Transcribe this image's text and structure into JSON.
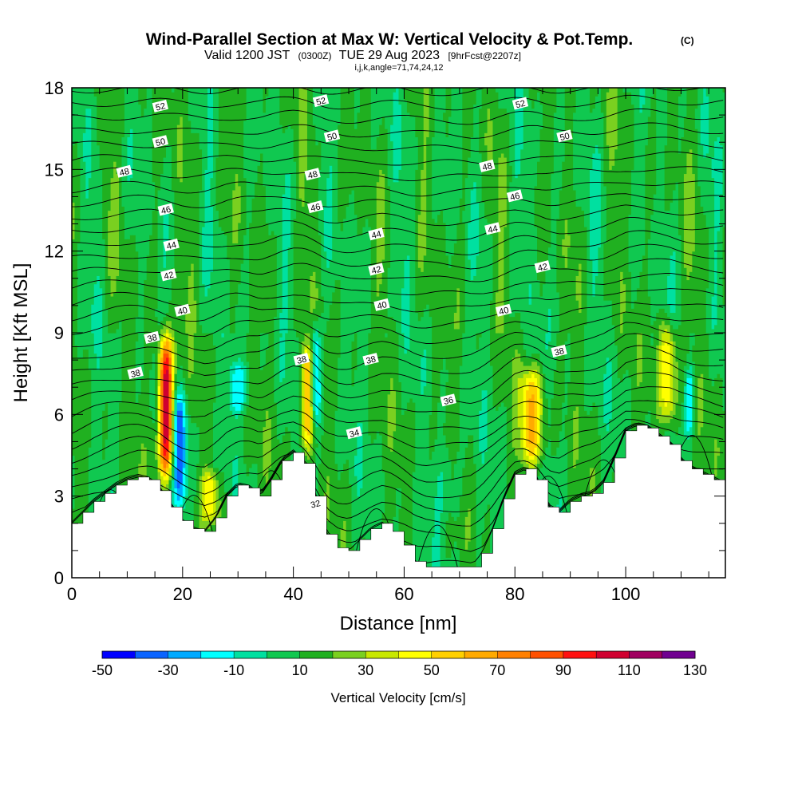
{
  "chart_data": {
    "type": "heatmap",
    "title": "Wind-Parallel Section at Max W: Vertical Velocity & Pot.Temp.",
    "copyright_mark": "(C)",
    "subtitle_valid": "Valid 1200 JST",
    "subtitle_utc": "(0300Z)",
    "subtitle_date": "TUE 29 Aug 2023",
    "subtitle_forecast": "[9hrFcst@2207z]",
    "subtitle_grid": "i,j,k,angle=71,74,24,12",
    "xlabel": "Distance [nm]",
    "ylabel": "Height [Kft MSL]",
    "xlim": [
      0,
      118
    ],
    "ylim": [
      0,
      18
    ],
    "x_ticks": [
      "0",
      "20",
      "40",
      "60",
      "80",
      "100"
    ],
    "x_tick_values": [
      0,
      20,
      40,
      60,
      80,
      100
    ],
    "y_ticks": [
      "0",
      "3",
      "6",
      "9",
      "12",
      "15",
      "18"
    ],
    "y_tick_values": [
      0,
      3,
      6,
      9,
      12,
      15,
      18
    ],
    "colorbar": {
      "label": "Vertical Velocity [cm/s]",
      "levels": [
        -50,
        -40,
        -30,
        -20,
        -10,
        0,
        10,
        20,
        30,
        40,
        50,
        60,
        70,
        80,
        90,
        100,
        110,
        120,
        130
      ],
      "tick_labels": [
        "-50",
        "-30",
        "-10",
        "10",
        "30",
        "50",
        "70",
        "90",
        "110",
        "130"
      ],
      "tick_values": [
        -50,
        -30,
        -10,
        10,
        30,
        50,
        70,
        90,
        110,
        130
      ],
      "colors": [
        "#0000ff",
        "#0a64ff",
        "#00aaff",
        "#00ffff",
        "#00e0a0",
        "#10c850",
        "#20b020",
        "#7ad020",
        "#c8e800",
        "#ffff00",
        "#ffd000",
        "#ffaa00",
        "#ff8000",
        "#ff5000",
        "#ff1010",
        "#d00030",
        "#a00060",
        "#700090"
      ]
    },
    "terrain_profile": {
      "x": [
        0,
        2,
        4,
        6,
        8,
        10,
        12,
        14,
        16,
        18,
        20,
        22,
        24,
        26,
        28,
        30,
        32,
        34,
        36,
        38,
        40,
        42,
        44,
        46,
        48,
        50,
        52,
        54,
        56,
        58,
        60,
        62,
        64,
        66,
        68,
        70,
        72,
        74,
        76,
        78,
        80,
        82,
        84,
        86,
        88,
        90,
        92,
        94,
        96,
        98,
        100,
        102,
        104,
        106,
        108,
        110,
        112,
        114,
        116,
        118
      ],
      "height": [
        2.0,
        2.4,
        2.8,
        3.1,
        3.4,
        3.6,
        3.7,
        3.6,
        3.2,
        2.6,
        2.1,
        1.8,
        1.7,
        2.2,
        3.0,
        3.4,
        3.3,
        3.0,
        3.6,
        4.3,
        4.6,
        4.2,
        3.0,
        1.6,
        1.1,
        1.0,
        1.4,
        1.8,
        2.0,
        1.7,
        1.2,
        0.6,
        0.4,
        0.4,
        0.4,
        0.4,
        0.4,
        0.9,
        1.8,
        2.9,
        3.8,
        4.0,
        3.6,
        2.6,
        2.4,
        2.8,
        3.0,
        3.1,
        3.5,
        4.4,
        5.4,
        5.6,
        5.5,
        5.2,
        4.9,
        4.3,
        4.0,
        3.8,
        3.6,
        3.4
      ]
    },
    "w_features": [
      {
        "x": 17.0,
        "zmin": 3.6,
        "zmax": 9.0,
        "sx": 1.3,
        "value": 105
      },
      {
        "x": 19.5,
        "zmin": 2.4,
        "zmax": 7.0,
        "sx": 1.2,
        "value": -45
      },
      {
        "x": 42.5,
        "zmin": 4.6,
        "zmax": 8.8,
        "sx": 1.2,
        "value": 55
      },
      {
        "x": 44.0,
        "zmin": 5.5,
        "zmax": 9.5,
        "sx": 1.0,
        "value": -40
      },
      {
        "x": 83.0,
        "zmin": 4.0,
        "zmax": 7.8,
        "sx": 2.0,
        "value": 50
      },
      {
        "x": 107.5,
        "zmin": 5.5,
        "zmax": 9.5,
        "sx": 1.5,
        "value": 42
      },
      {
        "x": 111.5,
        "zmin": 5.2,
        "zmax": 7.8,
        "sx": 0.8,
        "value": -30
      },
      {
        "x": 30.0,
        "zmin": 6.0,
        "zmax": 8.0,
        "sx": 1.8,
        "value": -25
      },
      {
        "x": 68.0,
        "zmin": 2.0,
        "zmax": 5.0,
        "sx": 2.5,
        "value": -12
      },
      {
        "x": 25.0,
        "zmin": 2.0,
        "zmax": 4.0,
        "sx": 1.5,
        "value": 35
      }
    ],
    "theta_contour_labels": [
      {
        "text": "52",
        "x": 16,
        "z": 17.3
      },
      {
        "text": "52",
        "x": 45,
        "z": 17.5
      },
      {
        "text": "52",
        "x": 81,
        "z": 17.4
      },
      {
        "text": "50",
        "x": 16,
        "z": 16.0
      },
      {
        "text": "50",
        "x": 47,
        "z": 16.2
      },
      {
        "text": "50",
        "x": 89,
        "z": 16.2
      },
      {
        "text": "48",
        "x": 9.5,
        "z": 14.9
      },
      {
        "text": "48",
        "x": 43.5,
        "z": 14.8
      },
      {
        "text": "48",
        "x": 75,
        "z": 15.1
      },
      {
        "text": "46",
        "x": 17,
        "z": 13.5
      },
      {
        "text": "46",
        "x": 44,
        "z": 13.6
      },
      {
        "text": "46",
        "x": 80,
        "z": 14.0
      },
      {
        "text": "44",
        "x": 18,
        "z": 12.2
      },
      {
        "text": "44",
        "x": 55,
        "z": 12.6
      },
      {
        "text": "44",
        "x": 76,
        "z": 12.8
      },
      {
        "text": "42",
        "x": 17.5,
        "z": 11.1
      },
      {
        "text": "42",
        "x": 55,
        "z": 11.3
      },
      {
        "text": "42",
        "x": 85,
        "z": 11.4
      },
      {
        "text": "40",
        "x": 20,
        "z": 9.8
      },
      {
        "text": "40",
        "x": 56,
        "z": 10.0
      },
      {
        "text": "40",
        "x": 78,
        "z": 9.8
      },
      {
        "text": "38",
        "x": 14.5,
        "z": 8.8
      },
      {
        "text": "38",
        "x": 41.5,
        "z": 8.0
      },
      {
        "text": "38",
        "x": 54,
        "z": 8.0
      },
      {
        "text": "38",
        "x": 88,
        "z": 8.3
      },
      {
        "text": "38",
        "x": 11.5,
        "z": 7.5
      },
      {
        "text": "36",
        "x": 68,
        "z": 6.5
      },
      {
        "text": "34",
        "x": 51,
        "z": 5.3
      },
      {
        "text": "32",
        "x": 44,
        "z": 2.7
      }
    ]
  }
}
